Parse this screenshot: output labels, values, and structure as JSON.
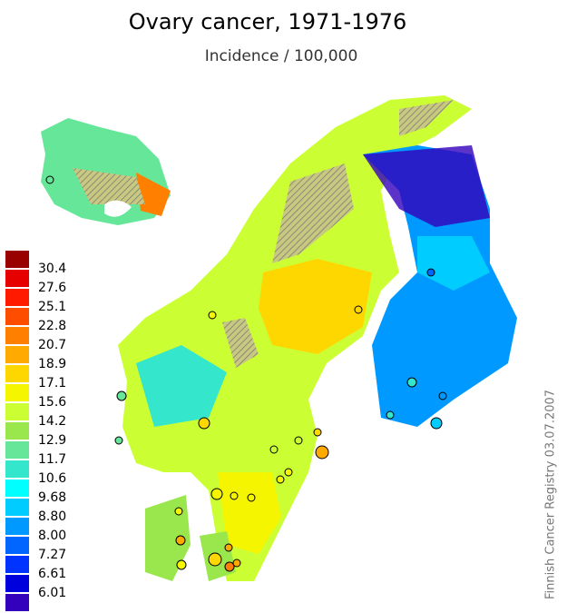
{
  "title": "Ovary cancer, 1971-1976",
  "subtitle": "Incidence / 100,000",
  "credit": "Finnish Cancer Registry 03.07.2007",
  "legend": {
    "colors": [
      "#990000",
      "#e60000",
      "#ff1a00",
      "#ff4d00",
      "#ff8000",
      "#ffaa00",
      "#ffd700",
      "#f5f500",
      "#ccff33",
      "#99e64d",
      "#66e699",
      "#33e6cc",
      "#00ffff",
      "#00ccff",
      "#0099ff",
      "#0066ff",
      "#0033ff",
      "#0000dd",
      "#3300bb"
    ],
    "labels": [
      "30.4",
      "27.6",
      "25.1",
      "22.8",
      "20.7",
      "18.9",
      "17.1",
      "15.6",
      "14.2",
      "12.9",
      "11.7",
      "10.6",
      "9.68",
      "8.80",
      "8.00",
      "7.27",
      "6.61",
      "6.01"
    ]
  }
}
